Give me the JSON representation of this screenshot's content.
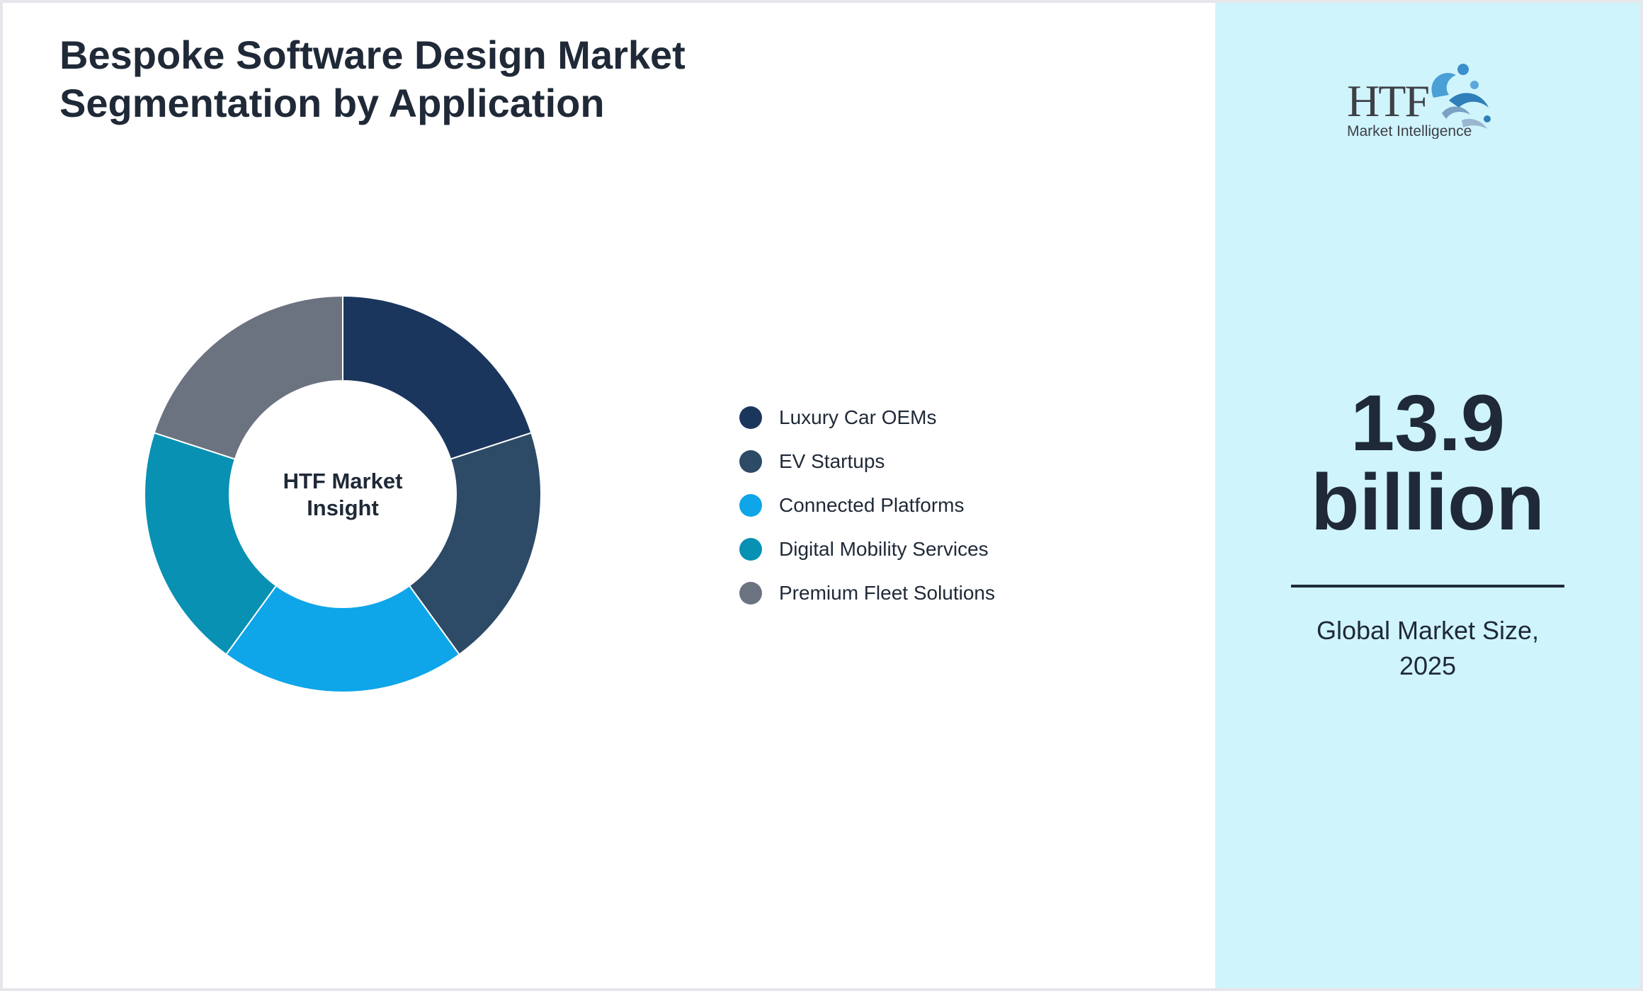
{
  "title_lines": [
    "Bespoke Software Design Market",
    "Segmentation by Application"
  ],
  "center_label_lines": [
    "HTF Market",
    "Insight"
  ],
  "chart_data": {
    "type": "pie",
    "variant": "donut",
    "title": "Bespoke Software Design Market Segmentation by Application",
    "categories": [
      "Luxury Car OEMs",
      "EV Startups",
      "Connected Platforms",
      "Digital Mobility Services",
      "Premium Fleet Solutions"
    ],
    "values": [
      20,
      20,
      20,
      20,
      20
    ],
    "colors": [
      "#1b365d",
      "#2d4a66",
      "#0ea5e9",
      "#0891b2",
      "#6b7280"
    ],
    "legend_position": "right"
  },
  "logo": {
    "text_main": "HTF",
    "text_sub": "Market Intelligence",
    "icon": "htf-logo-icon"
  },
  "kpi": {
    "value": "13.9",
    "unit": "billion",
    "caption_lines": [
      "Global Market Size,",
      "2025"
    ]
  },
  "colors": {
    "side_panel": "#cff4fc",
    "text": "#1f2937"
  }
}
